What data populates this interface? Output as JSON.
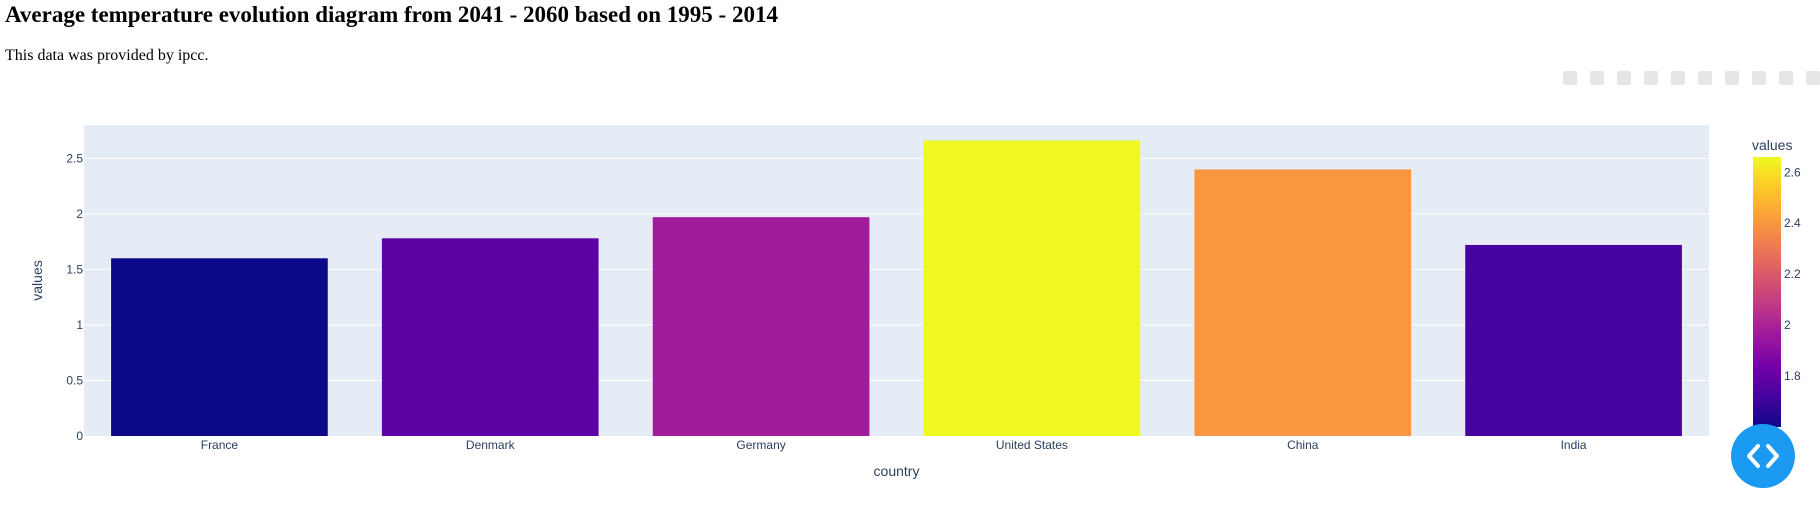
{
  "page": {
    "title": "Average temperature evolution diagram from 2041 - 2060 based on 1995 - 2014",
    "subtitle": "This data was provided by ipcc."
  },
  "icons": {
    "modebar": [
      "camera-icon",
      "zoom-icon",
      "pan-icon",
      "box-select-icon",
      "lasso-icon",
      "zoom-in-icon",
      "zoom-out-icon",
      "autoscale-icon",
      "reset-axes-icon",
      "plotly-logo-icon"
    ],
    "fab": "code-icon"
  },
  "colors": {
    "plot_bg": "#e5ecf6",
    "grid": "#ffffff",
    "text": "#2a3f5f",
    "fab": "#1a9af2",
    "colorscale": [
      "#0d0887",
      "#46039f",
      "#7201a8",
      "#9c179e",
      "#bd3786",
      "#d8576b",
      "#ed7953",
      "#fb9f3a",
      "#fdca26",
      "#f0f921"
    ]
  },
  "chart_data": {
    "type": "bar",
    "categories": [
      "France",
      "Denmark",
      "Germany",
      "United States",
      "China",
      "India"
    ],
    "values": [
      1.6,
      1.78,
      1.97,
      2.66,
      2.4,
      1.72
    ],
    "xlabel": "country",
    "ylabel": "values",
    "ylim": [
      0,
      2.8
    ],
    "yticks": [
      0,
      0.5,
      1,
      1.5,
      2,
      2.5
    ],
    "ytick_labels": [
      "0",
      "0.5",
      "1",
      "1.5",
      "2",
      "2.5"
    ],
    "grid": true,
    "colorbar": {
      "title": "values",
      "range": [
        1.6,
        2.66
      ],
      "ticks": [
        1.8,
        2,
        2.2,
        2.4,
        2.6
      ],
      "tick_labels": [
        "1.8",
        "2",
        "2.2",
        "2.4",
        "2.6"
      ]
    }
  }
}
